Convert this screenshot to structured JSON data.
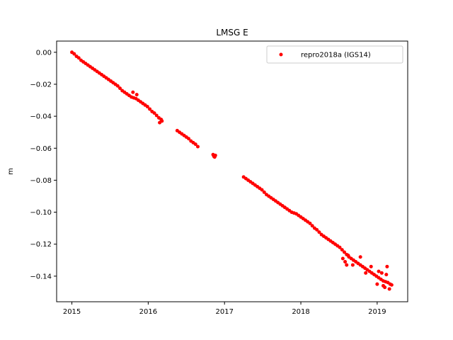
{
  "chart_data": {
    "type": "scatter",
    "title": "LMSG E",
    "xlabel": "",
    "ylabel": "m",
    "xlim": [
      2014.8,
      2019.4
    ],
    "ylim": [
      -0.156,
      0.007
    ],
    "xticks": [
      2015,
      2016,
      2017,
      2018,
      2019
    ],
    "xtick_labels": [
      "2015",
      "2016",
      "2017",
      "2018",
      "2019"
    ],
    "yticks": [
      0.0,
      -0.02,
      -0.04,
      -0.06,
      -0.08,
      -0.1,
      -0.12,
      -0.14
    ],
    "ytick_labels": [
      "0.00",
      "−0.02",
      "−0.04",
      "−0.06",
      "−0.08",
      "−0.10",
      "−0.12",
      "−0.14"
    ],
    "grid": false,
    "legend": {
      "position": "top-right",
      "entries": [
        {
          "label": "repro2018a (IGS14)",
          "color": "#ff0000",
          "marker": "dot"
        }
      ]
    },
    "series": [
      {
        "name": "repro2018a (IGS14)",
        "color": "#ff0000",
        "marker": "dot",
        "points": [
          [
            2015.0,
            0.0
          ],
          [
            2015.03,
            -0.001
          ],
          [
            2015.06,
            -0.0025
          ],
          [
            2015.09,
            -0.0035
          ],
          [
            2015.12,
            -0.005
          ],
          [
            2015.15,
            -0.006
          ],
          [
            2015.18,
            -0.007
          ],
          [
            2015.21,
            -0.008
          ],
          [
            2015.24,
            -0.009
          ],
          [
            2015.27,
            -0.01
          ],
          [
            2015.3,
            -0.011
          ],
          [
            2015.33,
            -0.012
          ],
          [
            2015.36,
            -0.013
          ],
          [
            2015.39,
            -0.014
          ],
          [
            2015.42,
            -0.015
          ],
          [
            2015.45,
            -0.016
          ],
          [
            2015.48,
            -0.017
          ],
          [
            2015.51,
            -0.018
          ],
          [
            2015.54,
            -0.019
          ],
          [
            2015.57,
            -0.02
          ],
          [
            2015.6,
            -0.021
          ],
          [
            2015.63,
            -0.0225
          ],
          [
            2015.66,
            -0.024
          ],
          [
            2015.69,
            -0.025
          ],
          [
            2015.72,
            -0.026
          ],
          [
            2015.75,
            -0.027
          ],
          [
            2015.78,
            -0.028
          ],
          [
            2015.81,
            -0.0285
          ],
          [
            2015.84,
            -0.029
          ],
          [
            2015.87,
            -0.03
          ],
          [
            2015.9,
            -0.031
          ],
          [
            2015.93,
            -0.032
          ],
          [
            2015.96,
            -0.033
          ],
          [
            2015.99,
            -0.034
          ],
          [
            2016.02,
            -0.0355
          ],
          [
            2016.05,
            -0.037
          ],
          [
            2016.08,
            -0.038
          ],
          [
            2016.11,
            -0.0395
          ],
          [
            2016.14,
            -0.041
          ],
          [
            2016.17,
            -0.042
          ],
          [
            2015.8,
            -0.025
          ],
          [
            2015.85,
            -0.0265
          ],
          [
            2016.15,
            -0.044
          ],
          [
            2016.18,
            -0.043
          ],
          [
            2016.38,
            -0.049
          ],
          [
            2016.41,
            -0.05
          ],
          [
            2016.44,
            -0.051
          ],
          [
            2016.47,
            -0.052
          ],
          [
            2016.5,
            -0.053
          ],
          [
            2016.53,
            -0.054
          ],
          [
            2016.56,
            -0.0555
          ],
          [
            2016.59,
            -0.0565
          ],
          [
            2016.62,
            -0.0575
          ],
          [
            2016.65,
            -0.059
          ],
          [
            2016.85,
            -0.064
          ],
          [
            2016.86,
            -0.065
          ],
          [
            2016.87,
            -0.0655
          ],
          [
            2016.88,
            -0.0645
          ],
          [
            2017.25,
            -0.078
          ],
          [
            2017.28,
            -0.079
          ],
          [
            2017.31,
            -0.08
          ],
          [
            2017.34,
            -0.081
          ],
          [
            2017.37,
            -0.082
          ],
          [
            2017.4,
            -0.083
          ],
          [
            2017.43,
            -0.084
          ],
          [
            2017.46,
            -0.085
          ],
          [
            2017.49,
            -0.086
          ],
          [
            2017.52,
            -0.0875
          ],
          [
            2017.55,
            -0.089
          ],
          [
            2017.58,
            -0.09
          ],
          [
            2017.61,
            -0.091
          ],
          [
            2017.64,
            -0.092
          ],
          [
            2017.67,
            -0.093
          ],
          [
            2017.7,
            -0.094
          ],
          [
            2017.73,
            -0.095
          ],
          [
            2017.76,
            -0.096
          ],
          [
            2017.79,
            -0.097
          ],
          [
            2017.82,
            -0.098
          ],
          [
            2017.85,
            -0.099
          ],
          [
            2017.88,
            -0.1
          ],
          [
            2017.91,
            -0.1005
          ],
          [
            2017.94,
            -0.101
          ],
          [
            2017.97,
            -0.102
          ],
          [
            2018.0,
            -0.103
          ],
          [
            2018.03,
            -0.104
          ],
          [
            2018.06,
            -0.105
          ],
          [
            2018.09,
            -0.106
          ],
          [
            2018.12,
            -0.107
          ],
          [
            2018.15,
            -0.1085
          ],
          [
            2018.18,
            -0.11
          ],
          [
            2018.21,
            -0.111
          ],
          [
            2018.24,
            -0.1125
          ],
          [
            2018.27,
            -0.114
          ],
          [
            2018.3,
            -0.115
          ],
          [
            2018.33,
            -0.116
          ],
          [
            2018.36,
            -0.117
          ],
          [
            2018.39,
            -0.118
          ],
          [
            2018.42,
            -0.119
          ],
          [
            2018.45,
            -0.12
          ],
          [
            2018.48,
            -0.121
          ],
          [
            2018.51,
            -0.122
          ],
          [
            2018.54,
            -0.1235
          ],
          [
            2018.57,
            -0.125
          ],
          [
            2018.6,
            -0.1265
          ],
          [
            2018.63,
            -0.128
          ],
          [
            2018.66,
            -0.129
          ],
          [
            2018.69,
            -0.13
          ],
          [
            2018.72,
            -0.131
          ],
          [
            2018.75,
            -0.132
          ],
          [
            2018.78,
            -0.133
          ],
          [
            2018.81,
            -0.134
          ],
          [
            2018.84,
            -0.135
          ],
          [
            2018.87,
            -0.136
          ],
          [
            2018.9,
            -0.137
          ],
          [
            2018.93,
            -0.138
          ],
          [
            2018.96,
            -0.139
          ],
          [
            2018.99,
            -0.14
          ],
          [
            2019.02,
            -0.141
          ],
          [
            2019.05,
            -0.142
          ],
          [
            2019.08,
            -0.143
          ],
          [
            2019.11,
            -0.1435
          ],
          [
            2019.14,
            -0.144
          ],
          [
            2019.17,
            -0.145
          ],
          [
            2019.19,
            -0.1455
          ],
          [
            2018.55,
            -0.129
          ],
          [
            2018.58,
            -0.131
          ],
          [
            2018.62,
            -0.127
          ],
          [
            2018.68,
            -0.133
          ],
          [
            2018.78,
            -0.128
          ],
          [
            2018.85,
            -0.138
          ],
          [
            2018.92,
            -0.134
          ],
          [
            2019.0,
            -0.145
          ],
          [
            2019.06,
            -0.138
          ],
          [
            2019.1,
            -0.147
          ],
          [
            2019.13,
            -0.134
          ],
          [
            2019.16,
            -0.148
          ],
          [
            2018.6,
            -0.133
          ],
          [
            2019.02,
            -0.137
          ],
          [
            2019.08,
            -0.146
          ],
          [
            2019.12,
            -0.139
          ]
        ]
      }
    ]
  }
}
